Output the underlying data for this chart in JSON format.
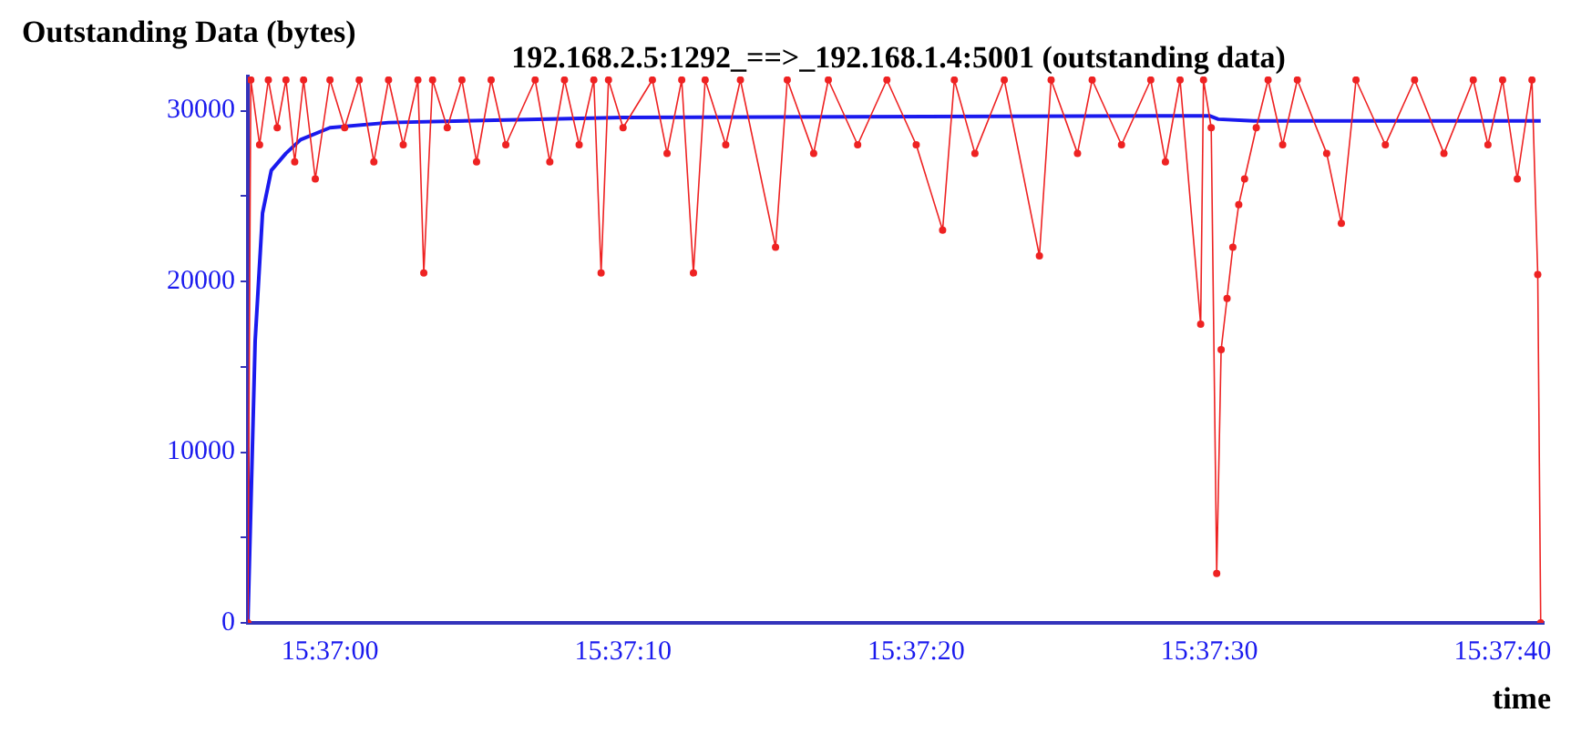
{
  "chart_data": {
    "type": "line",
    "title": "192.168.2.5:1292_==>_192.168.1.4:5001 (outstanding data)",
    "ylabel": "Outstanding Data (bytes)",
    "xlabel": "time",
    "xlim": [
      15.615889,
      15.628167
    ],
    "xticks": [
      {
        "value": 15.616667,
        "label": "15:37:00"
      },
      {
        "value": 15.619444,
        "label": "15:37:10"
      },
      {
        "value": 15.622222,
        "label": "15:37:20"
      },
      {
        "value": 15.625,
        "label": "15:37:30"
      },
      {
        "value": 15.627778,
        "label": "15:37:40"
      }
    ],
    "ylim": [
      0,
      32000
    ],
    "yticks": [
      0,
      {
        "value": 5000,
        "label": null
      },
      10000,
      {
        "value": 15000,
        "label": null
      },
      20000,
      {
        "value": 25000,
        "label": null
      },
      30000
    ],
    "grid": false,
    "legend": false,
    "line_style": "solid",
    "series": [
      {
        "color": "#ee2222",
        "marker": "circle",
        "x": [
          15.615889,
          15.615917,
          15.616,
          15.616083,
          15.616167,
          15.61625,
          15.616333,
          15.616417,
          15.616528,
          15.616667,
          15.616806,
          15.616944,
          15.617083,
          15.617222,
          15.617361,
          15.6175,
          15.617556,
          15.617639,
          15.617778,
          15.617917,
          15.618056,
          15.618194,
          15.618333,
          15.618611,
          15.61875,
          15.618889,
          15.619028,
          15.619167,
          15.619236,
          15.619306,
          15.619444,
          15.619722,
          15.619861,
          15.62,
          15.620111,
          15.620222,
          15.620417,
          15.620556,
          15.620889,
          15.621,
          15.62125,
          15.621389,
          15.621667,
          15.621944,
          15.622222,
          15.622472,
          15.622583,
          15.622778,
          15.623056,
          15.623389,
          15.6235,
          15.62375,
          15.623889,
          15.624167,
          15.624444,
          15.624583,
          15.624722,
          15.624917,
          15.624944,
          15.625017,
          15.625069,
          15.625111,
          15.625167,
          15.625222,
          15.625278,
          15.625333,
          15.625444,
          15.625556,
          15.625694,
          15.625833,
          15.626111,
          15.62625,
          15.626389,
          15.626667,
          15.626944,
          15.627222,
          15.6275,
          15.627639,
          15.627778,
          15.627917,
          15.628056,
          15.628111,
          15.628139
        ],
        "values": [
          0,
          31800,
          28000,
          31800,
          29000,
          31800,
          27000,
          31800,
          26000,
          31800,
          29000,
          31800,
          27000,
          31800,
          28000,
          31800,
          20500,
          31800,
          29000,
          31800,
          27000,
          31800,
          28000,
          31800,
          27000,
          31800,
          28000,
          31800,
          20500,
          31800,
          29000,
          31800,
          27500,
          31800,
          20500,
          31800,
          28000,
          31800,
          22000,
          31800,
          27500,
          31800,
          28000,
          31800,
          28000,
          23000,
          31800,
          27500,
          31800,
          21500,
          31800,
          27500,
          31800,
          28000,
          31800,
          27000,
          31800,
          17500,
          31800,
          29000,
          2900,
          16000,
          19000,
          22000,
          24500,
          26000,
          29000,
          31800,
          28000,
          31800,
          27500,
          23400,
          31800,
          28000,
          31800,
          27500,
          31800,
          28000,
          31800,
          26000,
          31800,
          20400,
          0
        ]
      },
      {
        "color": "#1a1aee",
        "marker": "none",
        "x": [
          15.615889,
          15.615958,
          15.616028,
          15.616111,
          15.61625,
          15.616389,
          15.616667,
          15.617222,
          15.619444,
          15.625,
          15.625083,
          15.625417,
          15.628139
        ],
        "values": [
          0,
          16500,
          24000,
          26500,
          27500,
          28300,
          29000,
          29300,
          29600,
          29700,
          29500,
          29400,
          29400
        ]
      }
    ]
  }
}
